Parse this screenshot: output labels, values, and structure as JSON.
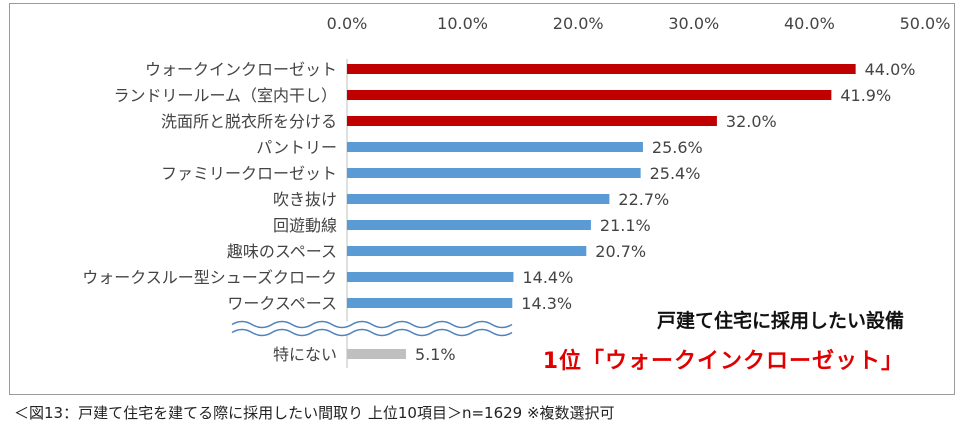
{
  "chart_data": {
    "type": "bar",
    "orientation": "horizontal",
    "categories": [
      "ウォークインクローゼット",
      "ランドリールーム（室内干し）",
      "洗面所と脱衣所を分ける",
      "パントリー",
      "ファミリークローゼット",
      "吹き抜け",
      "回遊動線",
      "趣味のスペース",
      "ウォークスルー型シューズクローク",
      "ワークスペース",
      "特にない"
    ],
    "values": [
      44.0,
      41.9,
      32.0,
      25.6,
      25.4,
      22.7,
      21.1,
      20.7,
      14.4,
      14.3,
      5.1
    ],
    "value_labels": [
      "44.0%",
      "41.9%",
      "32.0%",
      "25.6%",
      "25.4%",
      "22.7%",
      "21.1%",
      "20.7%",
      "14.4%",
      "14.3%",
      "5.1%"
    ],
    "bar_colors": [
      "#c00000",
      "#c00000",
      "#c00000",
      "#5b9bd5",
      "#5b9bd5",
      "#5b9bd5",
      "#5b9bd5",
      "#5b9bd5",
      "#5b9bd5",
      "#5b9bd5",
      "#bfbfbf"
    ],
    "xlim": [
      0,
      50
    ],
    "xticks": [
      "0.0%",
      "10.0%",
      "20.0%",
      "30.0%",
      "40.0%",
      "50.0%"
    ],
    "x_axis_position": "top",
    "axis_break": "between ワークスペース and 特にない",
    "grid": false,
    "legend": "none"
  },
  "headline": {
    "sub": "戸建て住宅に採用したい設備",
    "main": "1位「ウォークインクローゼット」"
  },
  "caption": "＜図13：戸建て住宅を建てる際に採用したい間取り 上位10項目＞n=1629 ※複数選択可"
}
